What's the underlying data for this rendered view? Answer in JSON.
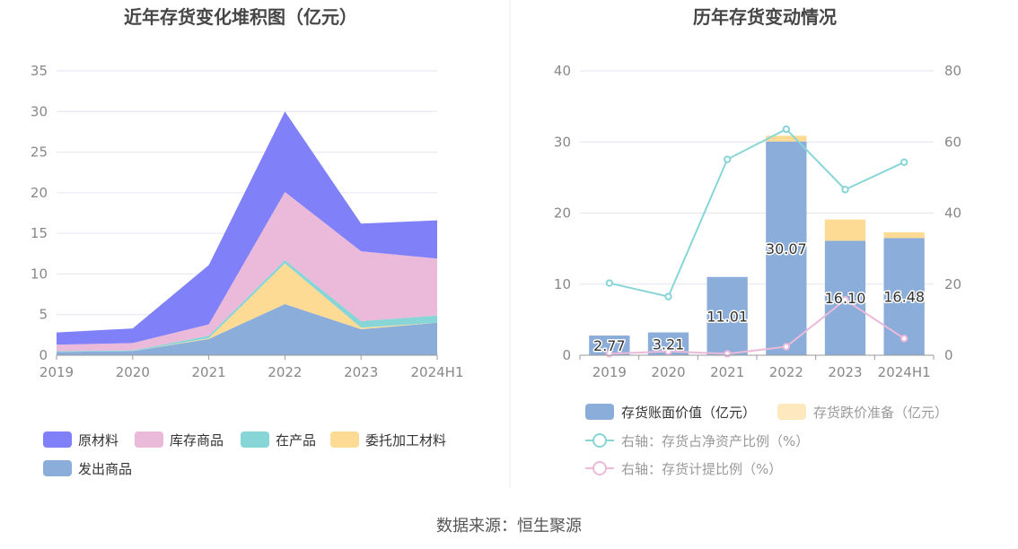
{
  "source_label": "数据来源：恒生聚源",
  "chart_data": [
    {
      "type": "area",
      "stacked": true,
      "title": "近年存货变化堆积图（亿元）",
      "categories": [
        "2019",
        "2020",
        "2021",
        "2022",
        "2023",
        "2024H1"
      ],
      "ylim": [
        0,
        35
      ],
      "yticks": [
        0,
        5,
        10,
        15,
        20,
        25,
        30,
        35
      ],
      "grid": true,
      "legend_position": "bottom",
      "series": [
        {
          "name": "发出商品",
          "color": "#8badd9",
          "values": [
            0.4,
            0.5,
            2.0,
            6.3,
            3.2,
            4.0
          ]
        },
        {
          "name": "委托加工材料",
          "color": "#fedb94",
          "values": [
            0.0,
            0.0,
            0.1,
            5.0,
            0.2,
            0.0
          ]
        },
        {
          "name": "在产品",
          "color": "#88d5d8",
          "values": [
            0.1,
            0.1,
            0.3,
            0.4,
            0.8,
            0.9
          ]
        },
        {
          "name": "库存商品",
          "color": "#ebb9d9",
          "values": [
            0.8,
            0.9,
            1.4,
            8.4,
            8.6,
            7.0
          ]
        },
        {
          "name": "原材料",
          "color": "#8081f8",
          "values": [
            1.5,
            1.8,
            7.3,
            9.9,
            3.4,
            4.7
          ]
        }
      ],
      "legend_order": [
        "原材料",
        "库存商品",
        "在产品",
        "委托加工材料",
        "发出商品"
      ]
    },
    {
      "type": "bar",
      "title": "历年存货变动情况",
      "categories": [
        "2019",
        "2020",
        "2021",
        "2022",
        "2023",
        "2024H1"
      ],
      "ylim_left": [
        0,
        40
      ],
      "yticks_left": [
        0,
        10,
        20,
        30,
        40
      ],
      "ylim_right": [
        0,
        80
      ],
      "yticks_right": [
        0,
        20,
        40,
        60,
        80
      ],
      "grid": true,
      "legend_position": "bottom",
      "bars": [
        {
          "name": "存货账面价值（亿元）",
          "color": "#8badd9",
          "values": [
            2.77,
            3.21,
            11.01,
            30.07,
            16.1,
            16.48
          ],
          "labels": [
            "2.77",
            "3.21",
            "11.01",
            "30.07",
            "16.10",
            "16.48"
          ]
        },
        {
          "name": "存货跌价准备（亿元）",
          "color": "#fedb94",
          "values": [
            0.0,
            0.0,
            0.0,
            0.8,
            3.0,
            0.8
          ]
        }
      ],
      "lines": [
        {
          "name": "右轴：存货占净资产比例（%）",
          "color": "#88d5d8",
          "axis": "right",
          "values": [
            20.3,
            16.5,
            55.1,
            63.6,
            46.6,
            54.3
          ]
        },
        {
          "name": "右轴：存货计提比例（%）",
          "color": "#ebb9d9",
          "axis": "right",
          "values": [
            0.4,
            1.1,
            0.4,
            2.4,
            15.6,
            4.7
          ]
        }
      ]
    }
  ]
}
